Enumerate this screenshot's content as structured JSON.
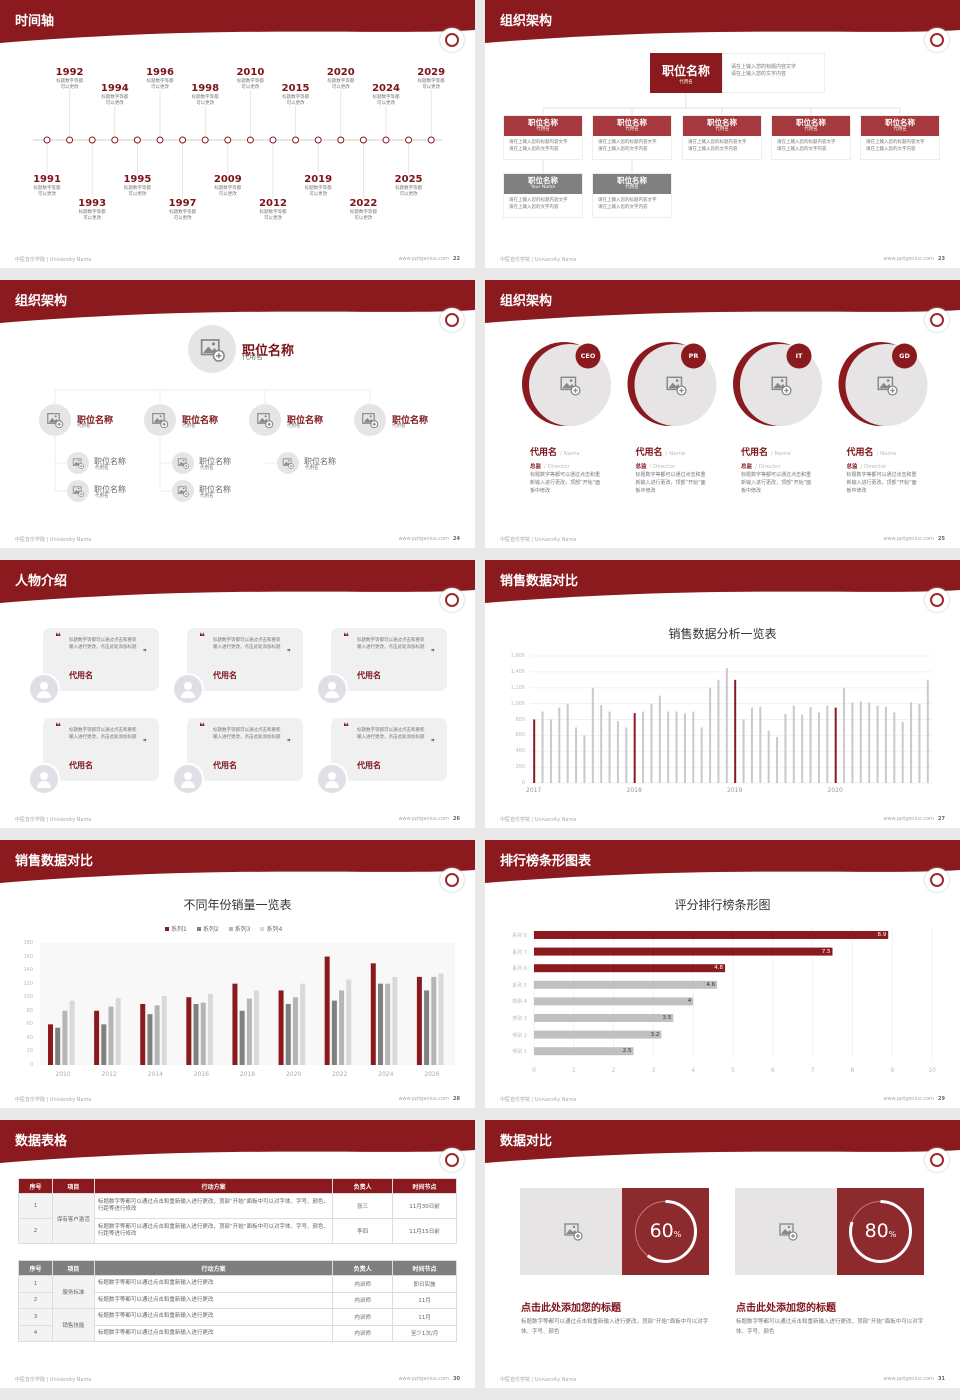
{
  "colors": {
    "brand": "#8b1a1f",
    "box_red": "#a5393e",
    "box_gray": "#808080",
    "light": "#e6e4e5",
    "bar_gray": "#c9c9c9"
  },
  "footer": {
    "left": "中医音乐学院 | University Name",
    "right": "www.pptgenius.com"
  },
  "slides": [
    {
      "title": "时间轴",
      "page": "22"
    },
    {
      "title": "组织架构",
      "page": "23"
    },
    {
      "title": "组织架构",
      "page": "24"
    },
    {
      "title": "组织架构",
      "page": "25"
    },
    {
      "title": "人物介绍",
      "page": "26"
    },
    {
      "title": "销售数据对比",
      "page": "27"
    },
    {
      "title": "销售数据对比",
      "page": "28"
    },
    {
      "title": "排行榜条形图表",
      "page": "29"
    },
    {
      "title": "数据表格",
      "page": "30"
    },
    {
      "title": "数据对比",
      "page": "31"
    }
  ],
  "timeline": {
    "text": "标题数字等都可以更改",
    "years": [
      "1991",
      "1992",
      "1993",
      "1994",
      "1995",
      "1996",
      "1997",
      "1998",
      "2009",
      "2010",
      "2012",
      "2015",
      "2019",
      "2020",
      "2022",
      "2024",
      "2025",
      "2029"
    ]
  },
  "org1": {
    "top": {
      "title": "职位名称",
      "sub": "代用名",
      "desc1": "请在上输入您的标题内容文字",
      "desc2": "请在上输入您的文字内容"
    },
    "boxes": [
      {
        "title": "职位名称",
        "sub": "代用名",
        "color": "red"
      },
      {
        "title": "职位名称",
        "sub": "代用名",
        "color": "red"
      },
      {
        "title": "职位名称",
        "sub": "代用名",
        "color": "red"
      },
      {
        "title": "职位名称",
        "sub": "代用名",
        "color": "red"
      },
      {
        "title": "职位名称",
        "sub": "代用名",
        "color": "red"
      },
      {
        "title": "职位名称",
        "sub": "Your Name",
        "color": "gray"
      },
      {
        "title": "职位名称",
        "sub": "代用名",
        "color": "gray"
      }
    ],
    "box_desc1": "请在上输入您的标题内容文字",
    "box_desc2": "请在上输入您的文字内容"
  },
  "org2": {
    "top": {
      "title": "职位名称",
      "sub": "代用名"
    },
    "level2": [
      {
        "title": "职位名称",
        "sub": "代用名"
      },
      {
        "title": "职位名称",
        "sub": "代用名"
      },
      {
        "title": "职位名称",
        "sub": "代用名"
      },
      {
        "title": "职位名称",
        "sub": "代用名"
      }
    ],
    "level3": [
      [
        {
          "title": "职位名称",
          "sub": "代用名"
        },
        {
          "title": "职位名称",
          "sub": "代用名"
        }
      ],
      [
        {
          "title": "职位名称",
          "sub": "代用名"
        },
        {
          "title": "职位名称",
          "sub": "代用名"
        }
      ],
      [
        {
          "title": "职位名称",
          "sub": "代用名"
        }
      ],
      []
    ]
  },
  "team": [
    {
      "badge": "CEO",
      "name": "代用名",
      "name_en": "/ Name",
      "role": "总监",
      "role_en": "/ Director",
      "desc": "标题数字等都可以通过点击和重新输入进行更改，顶部“开始”面板中修改"
    },
    {
      "badge": "PR",
      "name": "代用名",
      "name_en": "/ Name",
      "role": "总监",
      "role_en": "/ Director",
      "desc": "标题数字等都可以通过点击和重新输入进行更改，顶部“开始”面板中修改"
    },
    {
      "badge": "IT",
      "name": "代用名",
      "name_en": "/ Name",
      "role": "总监",
      "role_en": "/ Director",
      "desc": "标题数字等都可以通过点击和重新输入进行更改，顶部“开始”面板中修改"
    },
    {
      "badge": "GD",
      "name": "代用名",
      "name_en": "/ Name",
      "role": "总监",
      "role_en": "/ Director",
      "desc": "标题数字等都可以通过点击和重新输入进行更改，顶部“开始”面板中修改"
    }
  ],
  "testimonials": [
    {
      "quote": "标题数字等都可以通过点击和重新输入进行更改，点击此处添加标题",
      "name": "代用名"
    },
    {
      "quote": "标题数字等都可以通过点击和重新输入进行更改，点击此处添加标题",
      "name": "代用名"
    },
    {
      "quote": "标题数字等都可以通过点击和重新输入进行更改，点击此处添加标题",
      "name": "代用名"
    },
    {
      "quote": "标题数字等都可以通过点击和重新输入进行更改，点击此处添加标题",
      "name": "代用名"
    },
    {
      "quote": "标题数字等都可以通过点击和重新输入进行更改，点击此处添加标题",
      "name": "代用名"
    },
    {
      "quote": "标题数字等都可以通过点击和重新输入进行更改，点击此处添加标题",
      "name": "代用名"
    }
  ],
  "table1": {
    "headers": [
      "序号",
      "项目",
      "行动方案",
      "负责人",
      "时间节点"
    ],
    "group": "保有客户激活",
    "rows": [
      [
        "1",
        "标题数字等都可以通过点击和重新输入进行更改，顶部“开始”面板中可以对字体、字号、颜色、行距等进行修改",
        "张三",
        "11月30日前"
      ],
      [
        "2",
        "标题数字等都可以通过点击和重新输入进行更改，顶部“开始”面板中可以对字体、字号、颜色、行距等进行修改",
        "李四",
        "11月15日前"
      ]
    ]
  },
  "table2": {
    "headers": [
      "序号",
      "项目",
      "行动方案",
      "负责人",
      "时间节点"
    ],
    "groups": [
      "服务标准",
      "销售技能"
    ],
    "rows": [
      [
        "1",
        "标题数字等都可以通过点击和重新输入进行更改",
        "内训师",
        "即日实施"
      ],
      [
        "2",
        "标题数字等都可以通过点击和重新输入进行更改",
        "内训师",
        "11月"
      ],
      [
        "3",
        "标题数字等都可以通过点击和重新输入进行更改",
        "内训师",
        "11月"
      ],
      [
        "4",
        "标题数字等都可以通过点击和重新输入进行更改",
        "内训师",
        "至少1次/月"
      ]
    ]
  },
  "compare": [
    {
      "percent": 60,
      "value": "60",
      "unit": "%",
      "title": "点击此处添加您的标题",
      "desc": "标题数字等都可以通过点击和重新输入进行更改，顶部“开始”面板中可以对字体、字号、颜色"
    },
    {
      "percent": 80,
      "value": "80",
      "unit": "%",
      "title": "点击此处添加您的标题",
      "desc": "标题数字等都可以通过点击和重新输入进行更改，顶部“开始”面板中可以对字体、字号、颜色"
    }
  ],
  "chart_data": [
    {
      "type": "bar",
      "title": "销售数据分析一览表",
      "ylim": [
        0,
        1600
      ],
      "yticks": [
        "0",
        "200",
        "400",
        "600",
        "800",
        "1,000",
        "1,200",
        "1,400",
        "1,600"
      ],
      "xticks": [
        "2017",
        "2018",
        "2019",
        "2020"
      ],
      "grid": true,
      "values": [
        800,
        900,
        800,
        950,
        1000,
        700,
        600,
        1200,
        980,
        900,
        780,
        700,
        880,
        900,
        1000,
        1100,
        900,
        900,
        875,
        900,
        700,
        1200,
        1300,
        1450,
        1300,
        800,
        950,
        960,
        660,
        580,
        870,
        975,
        860,
        955,
        890,
        975,
        950,
        1200,
        1015,
        1030,
        1015,
        975,
        960,
        890,
        770,
        1015,
        1000,
        1300
      ],
      "highlight_indices": [
        0,
        12,
        24,
        36
      ]
    },
    {
      "type": "bar",
      "title": "不同年份销量一览表",
      "ylim": [
        0,
        180
      ],
      "yticks": [
        "0",
        "20",
        "40",
        "60",
        "80",
        "100",
        "120",
        "140",
        "160",
        "180"
      ],
      "legend": "top",
      "categories": [
        "2010",
        "2012",
        "2014",
        "2016",
        "2018",
        "2020",
        "2022",
        "2024",
        "2026"
      ],
      "series": [
        {
          "name": "系列1",
          "color": "#8b1a1f",
          "values": [
            60,
            80,
            90,
            100,
            120,
            110,
            160,
            150,
            130
          ]
        },
        {
          "name": "系列2",
          "color": "#808080",
          "values": [
            55,
            60,
            75,
            90,
            80,
            90,
            95,
            120,
            110
          ]
        },
        {
          "name": "系列3",
          "color": "#b5b5b5",
          "values": [
            80,
            86,
            88,
            92,
            98,
            100,
            110,
            120,
            130
          ]
        },
        {
          "name": "系列4",
          "color": "#d9d9d9",
          "values": [
            95,
            99,
            102,
            105,
            110,
            120,
            126,
            130,
            135
          ]
        }
      ]
    },
    {
      "type": "bar",
      "orientation": "horizontal",
      "title": "评分排行榜条形图",
      "xlim": [
        0,
        10
      ],
      "xticks": [
        "0",
        "1",
        "2",
        "3",
        "4",
        "5",
        "6",
        "7",
        "8",
        "9",
        "10"
      ],
      "categories": [
        "系列 8",
        "系列 7",
        "系列 6",
        "系列 5",
        "类别 4",
        "类别 3",
        "类别 2",
        "类别 1"
      ],
      "values": [
        8.9,
        7.5,
        4.8,
        4.6,
        4,
        3.5,
        3.2,
        2.5
      ],
      "labels": [
        "8.9",
        "7.5",
        "4.8",
        "4.6",
        "4",
        "3.5",
        "3.2",
        "2.5"
      ],
      "colors": [
        "#8b1a1f",
        "#8b1a1f",
        "#8b1a1f",
        "#c0c0c0",
        "#c0c0c0",
        "#c0c0c0",
        "#c0c0c0",
        "#c0c0c0"
      ]
    }
  ]
}
